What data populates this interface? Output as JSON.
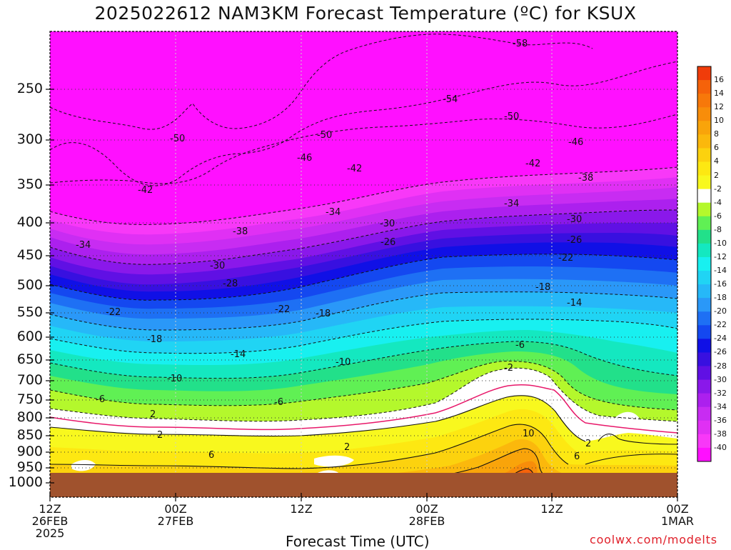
{
  "chart_data": {
    "type": "heatmap",
    "title": "2025022612 NAM3KM Forecast Temperature (ºC) for KSUX",
    "xlabel": "Forecast Time (UTC)",
    "credit": "coolwx.com/modelts",
    "y_ticks": [
      "250",
      "300",
      "350",
      "400",
      "450",
      "500",
      "550",
      "600",
      "650",
      "700",
      "750",
      "800",
      "850",
      "900",
      "950",
      "1000"
    ],
    "x_ticks": [
      {
        "l1": "12Z",
        "l2": "26FEB",
        "l3": "2025"
      },
      {
        "l1": "00Z",
        "l2": "27FEB",
        "l3": ""
      },
      {
        "l1": "12Z",
        "l2": "",
        "l3": ""
      },
      {
        "l1": "00Z",
        "l2": "28FEB",
        "l3": ""
      },
      {
        "l1": "12Z",
        "l2": "",
        "l3": ""
      },
      {
        "l1": "00Z",
        "l2": "1MAR",
        "l3": ""
      }
    ],
    "colorbar": {
      "labels": [
        "16",
        "14",
        "12",
        "10",
        "8",
        "6",
        "4",
        "2",
        "-2",
        "-4",
        "-6",
        "-8",
        "-10",
        "-12",
        "-14",
        "-16",
        "-18",
        "-20",
        "-22",
        "-24",
        "-26",
        "-28",
        "-30",
        "-32",
        "-34",
        "-36",
        "-38",
        "-40"
      ],
      "colors": [
        "#f03c0a",
        "#f5620a",
        "#f7780a",
        "#f88d0a",
        "#f9a40a",
        "#fbb80c",
        "#fcd20e",
        "#fde812",
        "#f8f81e",
        "#ffffff",
        "#b4f82c",
        "#60f054",
        "#22e08a",
        "#14e8c0",
        "#18f0f0",
        "#20d4f4",
        "#26b8f8",
        "#2a98f8",
        "#1e70f4",
        "#1448f0",
        "#1010e6",
        "#3810e0",
        "#6010e4",
        "#8a18ea",
        "#ac20ee",
        "#c82cf2",
        "#e030f4",
        "#f838f8",
        "#ff10ff"
      ]
    },
    "contour_labels": [
      {
        "t": "-58",
        "x": 730,
        "y": 62
      },
      {
        "t": "-54",
        "x": 632,
        "y": 140
      },
      {
        "t": "-50",
        "x": 718,
        "y": 164
      },
      {
        "t": "-50",
        "x": 456,
        "y": 190
      },
      {
        "t": "-50",
        "x": 250,
        "y": 195
      },
      {
        "t": "-46",
        "x": 808,
        "y": 200
      },
      {
        "t": "-46",
        "x": 428,
        "y": 222
      },
      {
        "t": "-42",
        "x": 748,
        "y": 230
      },
      {
        "t": "-42",
        "x": 498,
        "y": 237
      },
      {
        "t": "-42",
        "x": 205,
        "y": 267
      },
      {
        "t": "-38",
        "x": 822,
        "y": 250
      },
      {
        "t": "-34",
        "x": 718,
        "y": 286
      },
      {
        "t": "-34",
        "x": 468,
        "y": 298
      },
      {
        "t": "-38",
        "x": 338,
        "y": 325
      },
      {
        "t": "-30",
        "x": 806,
        "y": 308
      },
      {
        "t": "-30",
        "x": 544,
        "y": 314
      },
      {
        "t": "-26",
        "x": 806,
        "y": 337
      },
      {
        "t": "-26",
        "x": 545,
        "y": 340
      },
      {
        "t": "-34",
        "x": 118,
        "y": 344
      },
      {
        "t": "-22",
        "x": 794,
        "y": 362
      },
      {
        "t": "-30",
        "x": 306,
        "y": 373
      },
      {
        "t": "-28",
        "x": 324,
        "y": 398
      },
      {
        "t": "-18",
        "x": 762,
        "y": 403
      },
      {
        "t": "-14",
        "x": 806,
        "y": 425
      },
      {
        "t": "-22",
        "x": 397,
        "y": 434
      },
      {
        "t": "-22",
        "x": 160,
        "y": 438
      },
      {
        "t": "-18",
        "x": 454,
        "y": 440
      },
      {
        "t": "-18",
        "x": 218,
        "y": 476
      },
      {
        "t": "-6",
        "x": 734,
        "y": 484
      },
      {
        "t": "-14",
        "x": 335,
        "y": 497
      },
      {
        "t": "-10",
        "x": 482,
        "y": 508
      },
      {
        "t": "-2",
        "x": 718,
        "y": 516
      },
      {
        "t": "-10",
        "x": 246,
        "y": 531
      },
      {
        "t": "-6",
        "x": 146,
        "y": 560
      },
      {
        "t": "-6",
        "x": 396,
        "y": 564
      },
      {
        "t": "2",
        "x": 222,
        "y": 581
      },
      {
        "t": "2",
        "x": 232,
        "y": 610
      },
      {
        "t": "10",
        "x": 744,
        "y": 608
      },
      {
        "t": "2",
        "x": 832,
        "y": 622
      },
      {
        "t": "2",
        "x": 494,
        "y": 627
      },
      {
        "t": "6",
        "x": 304,
        "y": 638
      },
      {
        "t": "6",
        "x": 816,
        "y": 640
      }
    ]
  }
}
